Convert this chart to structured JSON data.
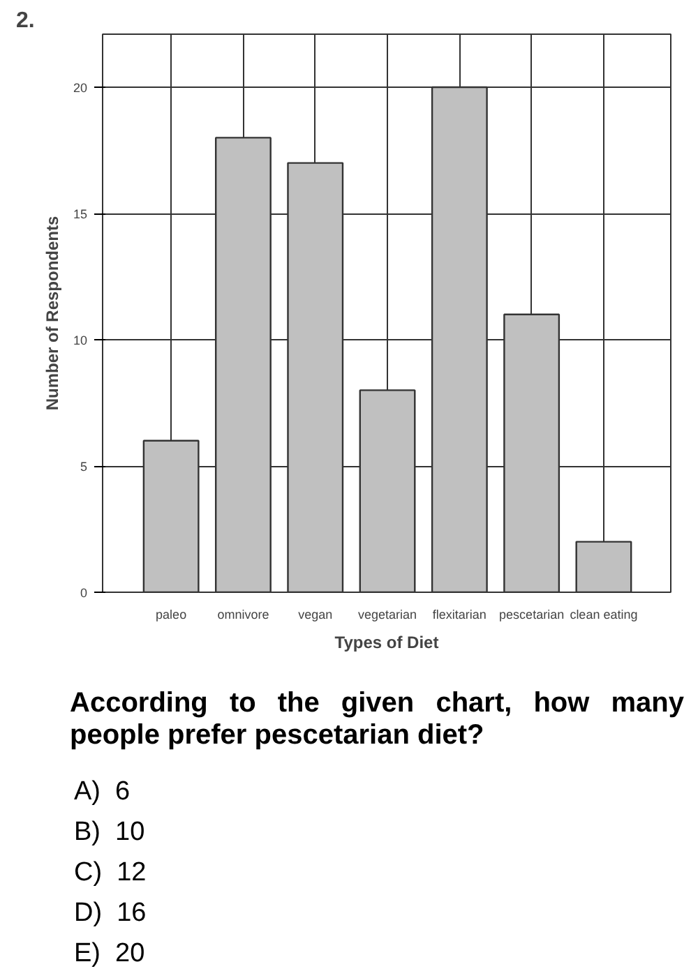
{
  "chart_data": {
    "type": "bar",
    "xlabel": "Types of Diet",
    "ylabel": "Number of Respondents",
    "categories": [
      "paleo",
      "omnivore",
      "vegan",
      "vegetarian",
      "flexitarian",
      "pescetarian",
      "clean eating"
    ],
    "values": [
      6,
      18,
      17,
      8,
      20,
      11,
      2
    ],
    "color": "#c0c0c0",
    "ylim": [
      0,
      22.1
    ],
    "yticks": [
      0,
      5,
      10,
      15,
      20
    ],
    "grid": true,
    "annotations": [
      "2.",
      "According to the given chart, how many people prefer pescetarian diet?",
      "A)  6",
      "B)  10",
      "C)  12",
      "D)  16",
      "E)  20"
    ]
  }
}
